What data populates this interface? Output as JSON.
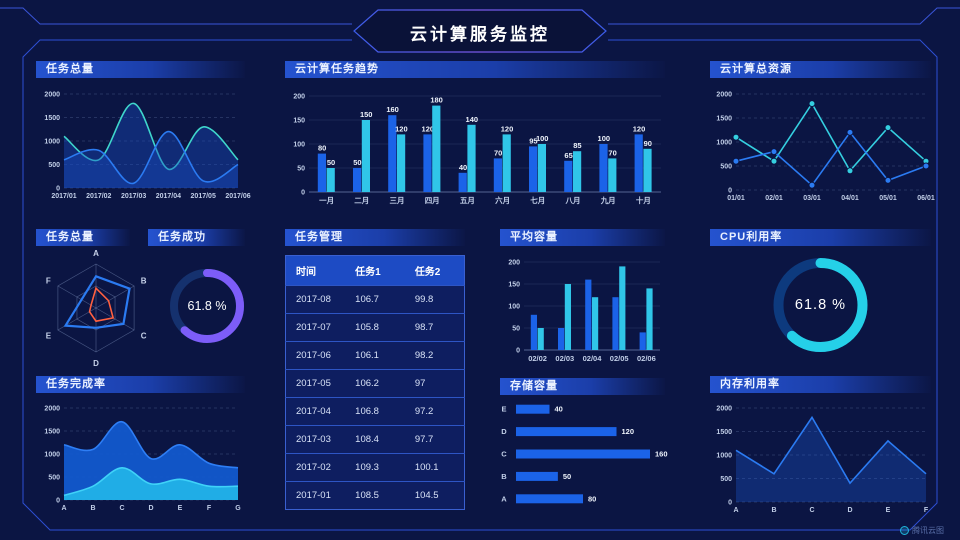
{
  "header": {
    "title": "云计算服务监控"
  },
  "watermark": {
    "text": "腾讯云图"
  },
  "panels": {
    "task_total": {
      "title": "任务总量"
    },
    "task_trend": {
      "title": "云计算任务趋势"
    },
    "cloud_resources": {
      "title": "云计算总资源"
    },
    "task_radar": {
      "title": "任务总量"
    },
    "task_success": {
      "title": "任务成功",
      "value_label": "61.8 %"
    },
    "task_manage": {
      "title": "任务管理"
    },
    "avg_capacity": {
      "title": "平均容量"
    },
    "cpu": {
      "title": "CPU利用率",
      "value_label": "61.8 %"
    },
    "completion": {
      "title": "任务完成率"
    },
    "storage": {
      "title": "存储容量"
    },
    "memory": {
      "title": "内存利用率"
    }
  },
  "colors": {
    "background": "#0b1543",
    "frame_line": "#3a55d8",
    "bar_blue": "#1b63e8",
    "bar_cyan": "#30c6e8",
    "line_teal": "#3fd6cb",
    "line_blue": "#2b7bf2",
    "donut_purple": "#7d5df8",
    "donut_cyan": "#25d0e8",
    "radar_orange": "#ff6040"
  },
  "chart_data": [
    {
      "id": "task_total_line",
      "type": "line",
      "title": "任务总量",
      "smooth": true,
      "area": true,
      "markers": false,
      "grid": "dashed",
      "x": [
        "2017/01",
        "2017/02",
        "2017/03",
        "2017/04",
        "2017/05",
        "2017/06"
      ],
      "ylim": [
        0,
        2000
      ],
      "yticks": [
        0,
        500,
        1000,
        1500,
        2000
      ],
      "series": [
        {
          "name": "series-teal",
          "color": "#3fd6cb",
          "fill": "rgba(25,78,195,0.40)",
          "values": [
            1100,
            600,
            1800,
            400,
            1300,
            600
          ]
        },
        {
          "name": "series-blue",
          "color": "#2b7bf2",
          "fill": "rgba(25,78,195,0.40)",
          "values": [
            600,
            800,
            100,
            1200,
            150,
            500
          ]
        }
      ]
    },
    {
      "id": "task_trend",
      "type": "bar",
      "title": "云计算任务趋势",
      "value_labels": true,
      "categories": [
        "一月",
        "二月",
        "三月",
        "四月",
        "五月",
        "六月",
        "七月",
        "八月",
        "九月",
        "十月"
      ],
      "ylim": [
        0,
        200
      ],
      "yticks": [
        0,
        50,
        100,
        150,
        200
      ],
      "series": [
        {
          "name": "任务1",
          "color": "#1b63e8",
          "values": [
            80,
            50,
            160,
            120,
            40,
            70,
            95,
            65,
            100,
            120
          ]
        },
        {
          "name": "任务2",
          "color": "#30c6e8",
          "values": [
            50,
            150,
            120,
            180,
            140,
            120,
            100,
            85,
            70,
            90
          ]
        }
      ]
    },
    {
      "id": "cloud_resources",
      "type": "line",
      "title": "云计算总资源",
      "smooth": false,
      "area": false,
      "markers": true,
      "grid": "dashed",
      "x": [
        "01/01",
        "02/01",
        "03/01",
        "04/01",
        "05/01",
        "06/01"
      ],
      "ylim": [
        0,
        2000
      ],
      "yticks": [
        0,
        500,
        1000,
        1500,
        2000
      ],
      "series": [
        {
          "name": "series-cyan",
          "color": "#35cfe0",
          "values": [
            1100,
            600,
            1800,
            400,
            1300,
            600
          ]
        },
        {
          "name": "series-blue",
          "color": "#2b7bf2",
          "values": [
            600,
            800,
            100,
            1200,
            200,
            500
          ]
        }
      ]
    },
    {
      "id": "task_radar",
      "type": "radar",
      "title": "任务总量",
      "axes": [
        "A",
        "B",
        "C",
        "D",
        "E",
        "F"
      ],
      "max": 100,
      "series": [
        {
          "name": "series-blue",
          "color": "#2b7bf2",
          "values": [
            72,
            88,
            72,
            45,
            80,
            38
          ]
        },
        {
          "name": "series-orange",
          "color": "#ff6040",
          "values": [
            45,
            33,
            45,
            30,
            17,
            13
          ]
        }
      ]
    },
    {
      "id": "task_success",
      "type": "donut",
      "title": "任务成功",
      "percent": 61.8,
      "label": "61.8 %",
      "color": "#7d5df8",
      "track": "#15316e",
      "radius": 33,
      "stroke_width": 8
    },
    {
      "id": "task_table",
      "type": "table",
      "title": "任务管理",
      "columns": [
        "时间",
        "任务1",
        "任务2"
      ],
      "rows": [
        [
          "2017-08",
          "106.7",
          "99.8"
        ],
        [
          "2017-07",
          "105.8",
          "98.7"
        ],
        [
          "2017-06",
          "106.1",
          "98.2"
        ],
        [
          "2017-05",
          "106.2",
          "97"
        ],
        [
          "2017-04",
          "106.8",
          "97.2"
        ],
        [
          "2017-03",
          "108.4",
          "97.7"
        ],
        [
          "2017-02",
          "109.3",
          "100.1"
        ],
        [
          "2017-01",
          "108.5",
          "104.5"
        ]
      ]
    },
    {
      "id": "avg_capacity",
      "type": "bar",
      "title": "平均容量",
      "value_labels": false,
      "categories": [
        "02/02",
        "02/03",
        "02/04",
        "02/05",
        "02/06"
      ],
      "ylim": [
        0,
        200
      ],
      "yticks": [
        0,
        50,
        100,
        150,
        200
      ],
      "series": [
        {
          "name": "series-blue",
          "color": "#1b63e8",
          "values": [
            80,
            50,
            160,
            120,
            40
          ]
        },
        {
          "name": "series-cyan",
          "color": "#30c6e8",
          "values": [
            50,
            150,
            120,
            190,
            140
          ]
        }
      ]
    },
    {
      "id": "cpu_donut",
      "type": "donut",
      "title": "CPU利用率",
      "percent": 61.8,
      "label": "61.8 %",
      "color": "#25d0e8",
      "track": "#0d3a7e",
      "radius": 42,
      "stroke_width": 10
    },
    {
      "id": "completion_area",
      "type": "line",
      "title": "任务完成率",
      "smooth": true,
      "area": true,
      "markers": false,
      "grid": "dashed",
      "x": [
        "A",
        "B",
        "C",
        "D",
        "E",
        "F",
        "G"
      ],
      "ylim": [
        0,
        2000
      ],
      "yticks": [
        0,
        500,
        1000,
        1500,
        2000
      ],
      "series": [
        {
          "name": "series-blue",
          "color": "#2e7ef5",
          "fill": "rgba(18,88,205,0.95)",
          "values": [
            1200,
            1100,
            1700,
            900,
            1200,
            800,
            700
          ]
        },
        {
          "name": "series-cyan",
          "color": "#3fd2f8",
          "fill": "rgba(34,178,232,0.95)",
          "values": [
            100,
            300,
            700,
            350,
            450,
            300,
            300
          ]
        }
      ]
    },
    {
      "id": "storage_hbar",
      "type": "hbar",
      "title": "存储容量",
      "categories": [
        "E",
        "D",
        "C",
        "B",
        "A"
      ],
      "values": [
        40,
        120,
        160,
        50,
        80
      ],
      "xmax": 160,
      "color": "#1b63e8"
    },
    {
      "id": "memory_line",
      "type": "line",
      "title": "内存利用率",
      "smooth": false,
      "area": true,
      "markers": false,
      "grid": "dashed",
      "x": [
        "A",
        "B",
        "C",
        "D",
        "E",
        "F"
      ],
      "ylim": [
        0,
        2000
      ],
      "yticks": [
        0,
        500,
        1000,
        1500,
        2000
      ],
      "series": [
        {
          "name": "series-blue",
          "color": "#2b7bf2",
          "fill": "rgba(30,95,225,0.30)",
          "values": [
            1100,
            600,
            1800,
            400,
            1300,
            600
          ]
        }
      ]
    }
  ]
}
